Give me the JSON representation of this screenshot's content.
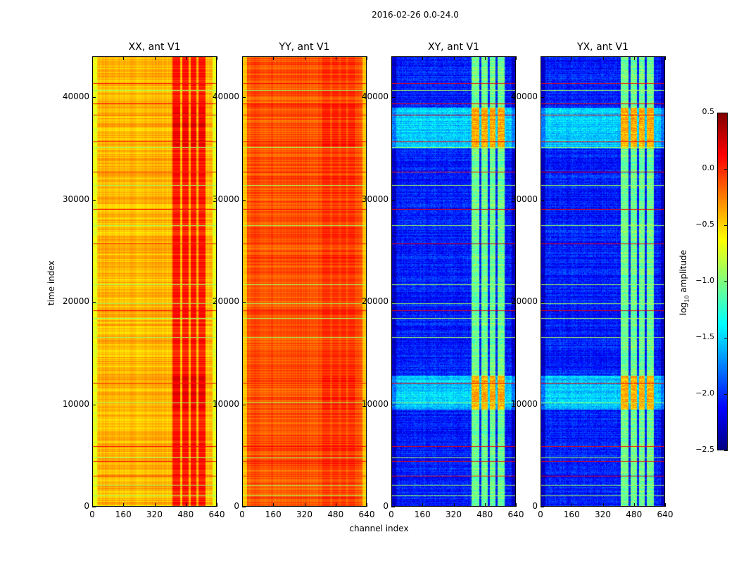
{
  "chart_data": {
    "type": "heatmap",
    "title": "2016-02-26 0.0-24.0",
    "xlabel": "channel index",
    "ylabel": "time index",
    "xlim": [
      0,
      640
    ],
    "ylim": [
      0,
      44000
    ],
    "xticks": [
      "0",
      "160",
      "320",
      "480",
      "640"
    ],
    "xtick_values": [
      0,
      160,
      320,
      480,
      640
    ],
    "yticks": [
      "0",
      "10000",
      "20000",
      "30000",
      "40000"
    ],
    "ytick_values": [
      0,
      10000,
      20000,
      30000,
      40000
    ],
    "colormap": "jet",
    "colorbar": {
      "label": "log₁₀ amplitude",
      "label_base": "log",
      "label_sub": "10",
      "label_rest": " amplitude",
      "range": [
        -2.5,
        0.5
      ],
      "ticks": [
        "0.5",
        "0.0",
        "−0.5",
        "−1.0",
        "−1.5",
        "−2.0",
        "−2.5"
      ],
      "tick_values": [
        0.5,
        0.0,
        -0.5,
        -1.0,
        -1.5,
        -2.0,
        -2.5
      ]
    },
    "rfi_channel_bands": [
      [
        410,
        450
      ],
      [
        460,
        495
      ],
      [
        505,
        535
      ],
      [
        545,
        580
      ]
    ],
    "flagged_times": [
      41400,
      40700,
      39400,
      38300,
      35700,
      35100,
      32700,
      31400,
      29100,
      27500,
      25700,
      21700,
      19900,
      19200,
      18400,
      16600,
      12100,
      10200,
      5900,
      4800,
      4500,
      3000,
      2100,
      1100
    ],
    "panels": [
      {
        "title": "XX, ant V1",
        "base": -0.42,
        "edge": -0.7,
        "rfi": 0.05,
        "high_band_boost": 0.1
      },
      {
        "title": "YY, ant V1",
        "base": -0.12,
        "edge": -0.45,
        "rfi": -0.02,
        "high_band_boost": 0.05
      },
      {
        "title": "XY, ant V1",
        "base": -2.05,
        "edge": -2.3,
        "rfi": -1.05,
        "high_band_boost": 0.65
      },
      {
        "title": "YX, ant V1",
        "base": -2.05,
        "edge": -2.3,
        "rfi": -1.05,
        "high_band_boost": 0.65
      }
    ]
  }
}
